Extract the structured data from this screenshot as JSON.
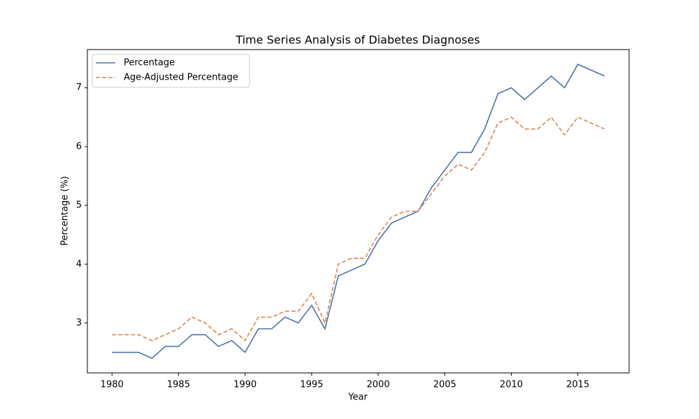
{
  "chart_data": {
    "type": "line",
    "title": "Time Series Analysis of Diabetes Diagnoses",
    "x_label": "Year",
    "y_label": "Percentage (%)",
    "x": [
      1980,
      1981,
      1982,
      1983,
      1984,
      1985,
      1986,
      1987,
      1988,
      1989,
      1990,
      1991,
      1992,
      1993,
      1994,
      1995,
      1996,
      1997,
      1998,
      1999,
      2000,
      2001,
      2002,
      2003,
      2004,
      2005,
      2006,
      2007,
      2008,
      2009,
      2010,
      2011,
      2012,
      2013,
      2014,
      2015,
      2016,
      2017
    ],
    "series": [
      {
        "name": "Percentage",
        "color": "#4c72b0",
        "linestyle": "solid",
        "values": [
          2.5,
          2.5,
          2.5,
          2.4,
          2.6,
          2.6,
          2.8,
          2.8,
          2.6,
          2.7,
          2.5,
          2.9,
          2.9,
          3.1,
          3.0,
          3.3,
          2.9,
          3.8,
          3.9,
          4.0,
          4.4,
          4.7,
          4.8,
          4.9,
          5.3,
          5.6,
          5.9,
          5.9,
          6.3,
          6.9,
          7.0,
          6.8,
          7.0,
          7.2,
          7.0,
          7.4,
          7.3,
          7.2
        ]
      },
      {
        "name": "Age-Adjusted Percentage",
        "color": "#dd8452",
        "linestyle": "dashed",
        "values": [
          2.8,
          2.8,
          2.8,
          2.7,
          2.8,
          2.9,
          3.1,
          3.0,
          2.8,
          2.9,
          2.7,
          3.1,
          3.1,
          3.2,
          3.2,
          3.5,
          3.0,
          4.0,
          4.1,
          4.1,
          4.5,
          4.8,
          4.9,
          4.9,
          5.2,
          5.5,
          5.7,
          5.6,
          5.9,
          6.4,
          6.5,
          6.3,
          6.3,
          6.5,
          6.2,
          6.5,
          6.4,
          6.3
        ]
      }
    ],
    "xlim": [
      1978.15,
      2018.85
    ],
    "xticks": [
      1980,
      1985,
      1990,
      1995,
      2000,
      2005,
      2010,
      2015
    ],
    "ylim": [
      2.15,
      7.65
    ],
    "yticks": [
      3,
      4,
      5,
      6,
      7
    ],
    "grid": false,
    "legend": "upper-left"
  }
}
